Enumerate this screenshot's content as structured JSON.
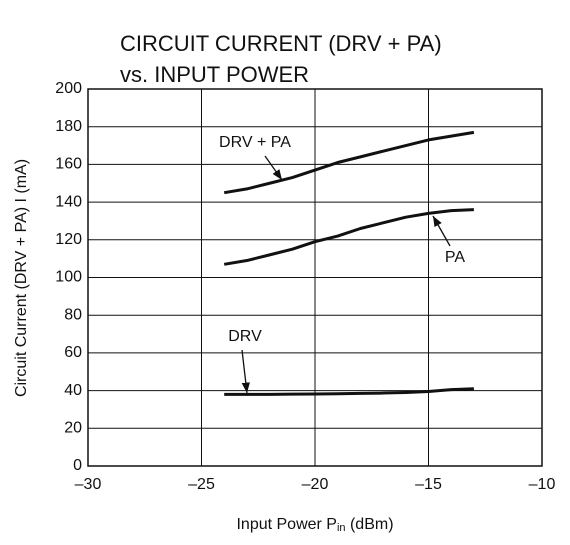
{
  "chart_data": {
    "type": "line",
    "title": [
      "CIRCUIT CURRENT (DRV + PA)",
      "vs. INPUT POWER"
    ],
    "xlabel": {
      "main": "Input Power  P",
      "sub": "in",
      "unit": " (dBm)"
    },
    "ylabel": "Circuit Current (DRV + PA)  I (mA)",
    "x": [
      -24,
      -23,
      -22,
      -21,
      -20,
      -19,
      -18,
      -17,
      -16,
      -15,
      -14,
      -13
    ],
    "series": [
      {
        "name": "DRV + PA",
        "color": "#111111",
        "values": [
          145,
          147,
          150,
          153,
          157,
          161,
          164,
          167,
          170,
          173,
          175,
          177
        ]
      },
      {
        "name": "PA",
        "color": "#111111",
        "values": [
          107,
          109,
          112,
          115,
          119,
          122,
          126,
          129,
          132,
          134,
          135.5,
          136
        ]
      },
      {
        "name": "DRV",
        "color": "#111111",
        "values": [
          38,
          38,
          38,
          38.1,
          38.2,
          38.3,
          38.5,
          38.7,
          39,
          39.5,
          40.5,
          41
        ]
      }
    ],
    "xlim": [
      -30,
      -10
    ],
    "xticks": [
      {
        "value": -30,
        "label": "–30"
      },
      {
        "value": -25,
        "label": "–25"
      },
      {
        "value": -20,
        "label": "–20"
      },
      {
        "value": -15,
        "label": "–15"
      },
      {
        "value": -10,
        "label": "–10"
      }
    ],
    "ylim": [
      0,
      200
    ],
    "yticks": [
      0,
      20,
      40,
      60,
      80,
      100,
      120,
      140,
      160,
      180,
      200
    ],
    "grid": true
  }
}
